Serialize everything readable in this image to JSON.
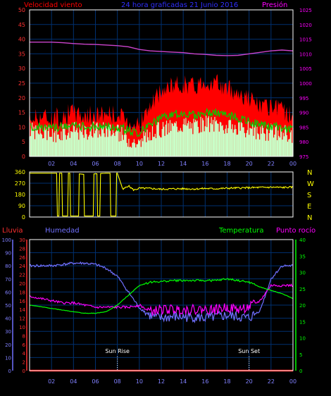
{
  "header": {
    "left_title": "Velocidad viento",
    "center_title": "24 hora graficadas  21 Junio 2016",
    "right_title": "Presión"
  },
  "colors": {
    "wind_max": "#ff0000",
    "wind_avg": "#00d000",
    "wind_inst": "#c8ffc8",
    "pressure": "#cc44cc",
    "direction": "#ffff00",
    "rain": "#ff0000",
    "humidity": "#7070ff",
    "temperature": "#00ff00",
    "dewpoint": "#ff00ff",
    "grid": "#003070",
    "frame": "#ffffff"
  },
  "x_ticks": [
    "02",
    "04",
    "06",
    "08",
    "10",
    "12",
    "14",
    "16",
    "18",
    "20",
    "22",
    "00"
  ],
  "compass": [
    "N",
    "W",
    "S",
    "E",
    "N"
  ],
  "chart_data": [
    {
      "type": "line",
      "name": "wind_pressure",
      "title": "24 hora graficadas  21 Junio 2016",
      "y_left_label": "Velocidad viento",
      "y_right_label": "Presión",
      "y_left_ticks": [
        0,
        5,
        10,
        15,
        20,
        25,
        30,
        35,
        40,
        45,
        50
      ],
      "y_right_ticks": [
        975,
        980,
        985,
        990,
        995,
        1000,
        1005,
        1010,
        1015,
        1020,
        1025
      ],
      "ylim_left": [
        0,
        50
      ],
      "ylim_right": [
        975,
        1025
      ],
      "x": [
        0,
        1,
        2,
        3,
        4,
        5,
        6,
        7,
        8,
        9,
        10,
        11,
        12,
        13,
        14,
        15,
        16,
        17,
        18,
        19,
        20,
        21,
        22,
        23,
        24
      ],
      "series": [
        {
          "key": "pressure",
          "values": [
            1014,
            1014,
            1014,
            1013.8,
            1013.5,
            1013.3,
            1013.2,
            1013.0,
            1012.8,
            1012.4,
            1011.5,
            1011.0,
            1010.8,
            1010.6,
            1010.4,
            1010.0,
            1009.8,
            1009.5,
            1009.4,
            1009.5,
            1010.0,
            1010.5,
            1011.0,
            1011.3,
            1011.0
          ]
        },
        {
          "key": "wind_max",
          "values": [
            13,
            14,
            13,
            14,
            15,
            14,
            14,
            15,
            14,
            12,
            11,
            17,
            22,
            24,
            25,
            24,
            26,
            25,
            23,
            22,
            20,
            17,
            16,
            16,
            14
          ]
        },
        {
          "key": "wind_avg",
          "values": [
            10,
            10,
            9.5,
            10,
            10.5,
            10,
            10,
            10.5,
            10,
            9,
            8,
            11,
            13,
            14,
            15,
            14,
            15,
            15,
            14,
            13,
            12,
            11,
            10,
            10,
            9
          ]
        },
        {
          "key": "wind_inst",
          "values": [
            8,
            7,
            6,
            7,
            8,
            7,
            8,
            8,
            7,
            5,
            3,
            7,
            8,
            9,
            10,
            9,
            10,
            10,
            9,
            8,
            8,
            7,
            7,
            7,
            6
          ]
        }
      ]
    },
    {
      "type": "line",
      "name": "wind_direction",
      "y_ticks": [
        0,
        90,
        180,
        270,
        360
      ],
      "ylim": [
        0,
        360
      ],
      "x": [
        0,
        1,
        2,
        3,
        4,
        5,
        6,
        7,
        8,
        8.5,
        9,
        9.5,
        10,
        11,
        12,
        13,
        14,
        15,
        16,
        17,
        18,
        19,
        20,
        21,
        22,
        23,
        24
      ],
      "values": [
        350,
        350,
        350,
        350,
        350,
        340,
        345,
        350,
        350,
        220,
        250,
        215,
        230,
        228,
        222,
        225,
        226,
        224,
        228,
        226,
        230,
        232,
        234,
        236,
        238,
        236,
        238
      ]
    },
    {
      "type": "line",
      "name": "temp_humidity",
      "legend": [
        "Lluvia",
        "Humedad",
        "Temperatura",
        "Punto rocío"
      ],
      "y_rain_ticks": [
        0,
        10,
        20,
        30,
        40,
        50,
        60,
        70,
        80,
        90,
        100
      ],
      "y_hum_ticks": [
        0,
        2,
        4,
        6,
        8,
        10,
        12,
        14,
        16,
        18,
        20,
        22,
        24,
        26,
        28,
        30
      ],
      "y_temp_ticks": [
        0,
        5,
        10,
        15,
        20,
        25,
        30,
        35,
        40
      ],
      "annotations": [
        {
          "text": "Sun Rise",
          "x": 8
        },
        {
          "text": "Sun Set",
          "x": 20
        }
      ],
      "x": [
        0,
        1,
        2,
        3,
        4,
        5,
        6,
        7,
        8,
        9,
        10,
        11,
        12,
        13,
        14,
        15,
        16,
        17,
        18,
        19,
        20,
        21,
        22,
        23,
        24
      ],
      "series": [
        {
          "key": "humidity",
          "values": [
            80,
            80,
            80,
            81,
            82,
            82,
            81,
            78,
            72,
            60,
            48,
            42,
            40,
            41,
            41,
            41,
            40,
            41,
            42,
            41,
            40,
            46,
            70,
            80,
            80
          ]
        },
        {
          "key": "temperature",
          "values": [
            20,
            19.5,
            19,
            18.5,
            18,
            17.5,
            17.5,
            18,
            20,
            23,
            26,
            27,
            27.2,
            27.5,
            27.5,
            27.5,
            27.5,
            27.5,
            28,
            27.5,
            27,
            25.5,
            24.5,
            23.5,
            22
          ]
        },
        {
          "key": "dewpoint",
          "values": [
            17,
            16.5,
            16,
            15.5,
            15.5,
            15,
            14.5,
            14.5,
            14.5,
            14.5,
            15,
            13.5,
            14,
            14,
            14,
            14,
            14,
            14,
            14.5,
            14,
            14.5,
            16,
            19.5,
            19.5,
            19.5
          ]
        },
        {
          "key": "rain",
          "values": [
            0,
            0,
            0,
            0,
            0,
            0,
            0,
            0,
            0,
            0,
            0,
            0,
            0,
            0,
            0,
            0,
            0,
            0,
            0,
            0,
            0,
            0,
            0,
            0,
            0
          ]
        }
      ]
    }
  ]
}
